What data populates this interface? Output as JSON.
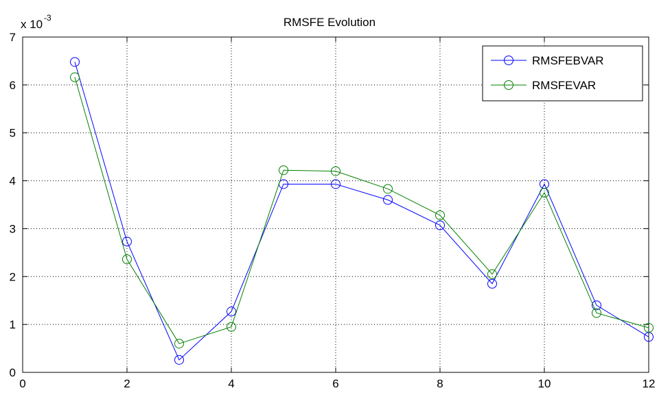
{
  "chart_data": {
    "type": "line",
    "title": "RMSFE Evolution",
    "xlabel": "",
    "ylabel": "",
    "y_scale_label": "x 10",
    "y_scale_exponent": "-3",
    "xlim": [
      0,
      12
    ],
    "ylim": [
      0,
      7
    ],
    "xticks": [
      "0",
      "2",
      "4",
      "6",
      "8",
      "10",
      "12"
    ],
    "yticks": [
      "0",
      "1",
      "2",
      "3",
      "4",
      "5",
      "6",
      "7"
    ],
    "grid": true,
    "legend_position": "top-right",
    "x": [
      1,
      2,
      3,
      4,
      5,
      6,
      7,
      8,
      9,
      10,
      11,
      12
    ],
    "series": [
      {
        "name": "RMSFEBVAR",
        "color": "#0000ff",
        "marker": "circle",
        "values": [
          6.48,
          2.73,
          0.26,
          1.27,
          3.93,
          3.93,
          3.6,
          3.07,
          1.85,
          3.93,
          1.4,
          0.74
        ]
      },
      {
        "name": "RMSFEVAR",
        "color": "#008000",
        "marker": "circle",
        "values": [
          6.16,
          2.36,
          0.6,
          0.95,
          4.22,
          4.2,
          3.83,
          3.28,
          2.05,
          3.75,
          1.24,
          0.93
        ]
      }
    ]
  }
}
